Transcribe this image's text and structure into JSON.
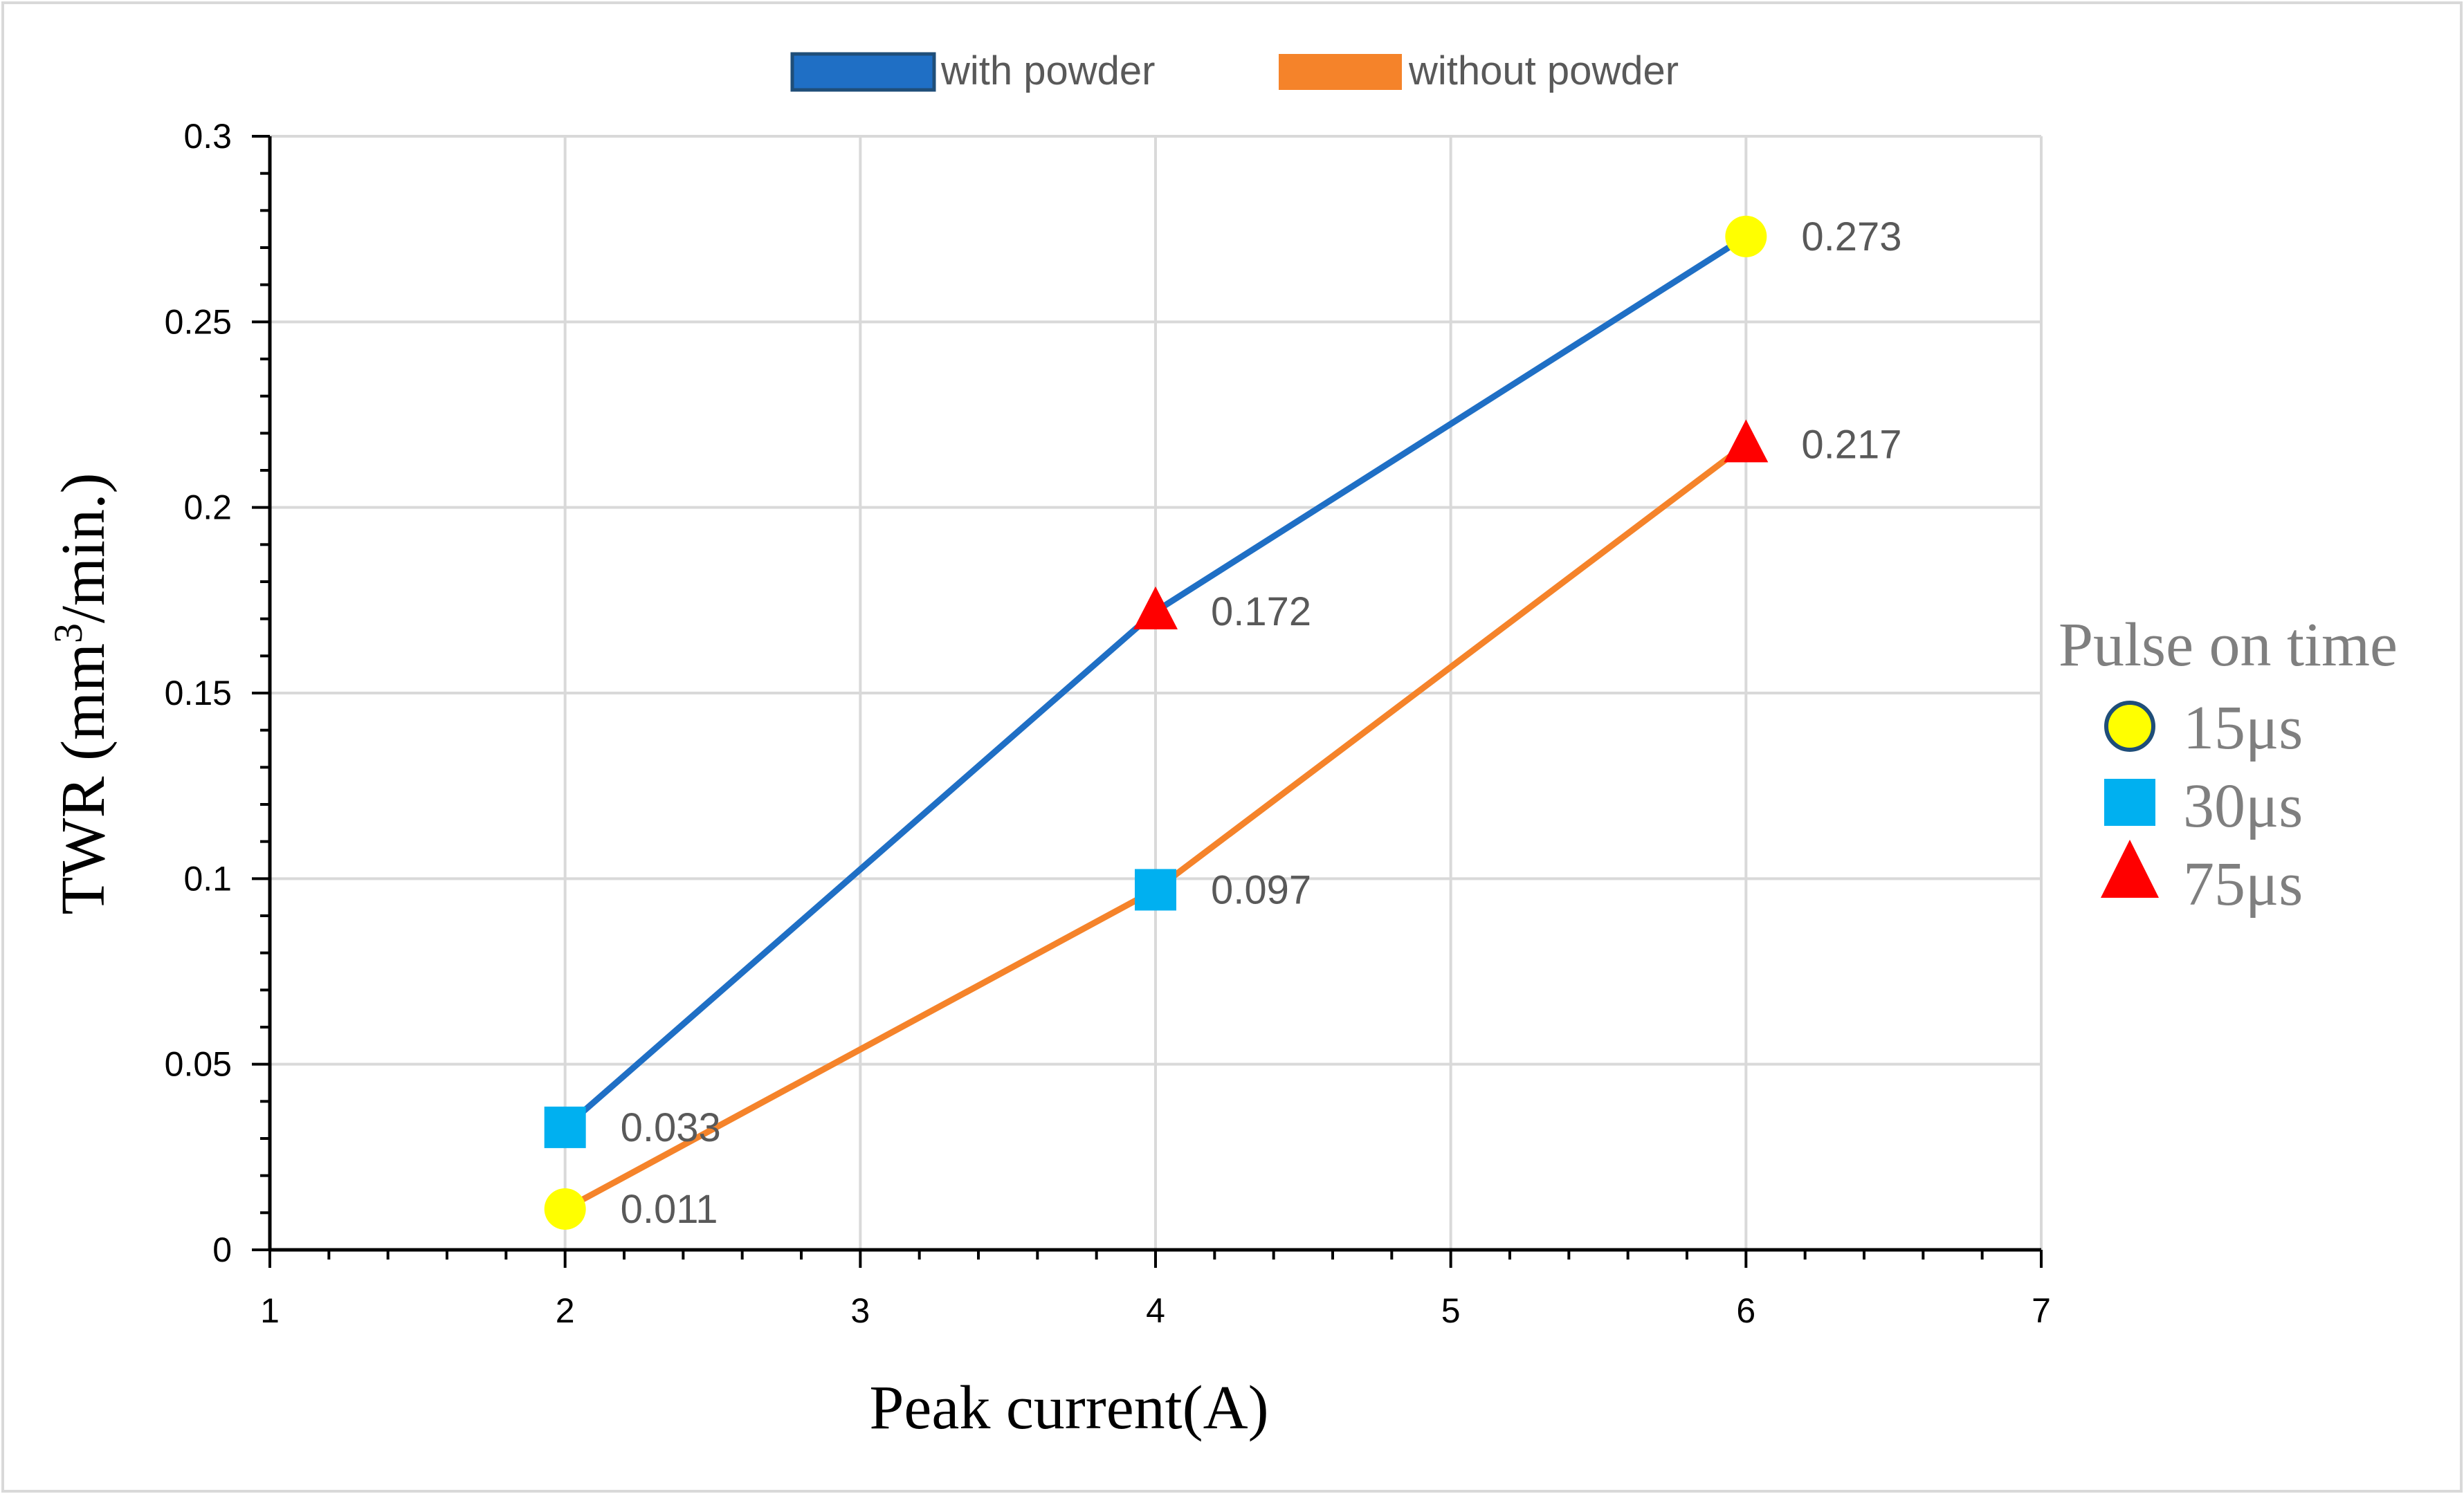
{
  "chart_data": {
    "type": "line",
    "xlabel": "Peak current(A)",
    "ylabel_main": "TWR (mm",
    "ylabel_sup": "3",
    "ylabel_tail": "/min.)",
    "xlim": [
      1,
      7
    ],
    "ylim": [
      0,
      0.3
    ],
    "x_ticks": [
      "1",
      "2",
      "3",
      "4",
      "5",
      "6",
      "7"
    ],
    "y_ticks": [
      "0",
      "0.05",
      "0.1",
      "0.15",
      "0.2",
      "0.25",
      "0.3"
    ],
    "grid": true,
    "legend_position": "top",
    "series": [
      {
        "name": "with powder",
        "color": "#1f6fc5",
        "points": [
          {
            "x": 2,
            "y": 0.033,
            "label": "0.033",
            "marker": "square"
          },
          {
            "x": 4,
            "y": 0.172,
            "label": "0.172",
            "marker": "triangle"
          },
          {
            "x": 6,
            "y": 0.273,
            "label": "0.273",
            "marker": "circle"
          }
        ]
      },
      {
        "name": "without powder",
        "color": "#f5832a",
        "points": [
          {
            "x": 2,
            "y": 0.011,
            "label": "0.011",
            "marker": "circle"
          },
          {
            "x": 4,
            "y": 0.097,
            "label": "0.097",
            "marker": "square"
          },
          {
            "x": 6,
            "y": 0.217,
            "label": "0.217",
            "marker": "triangle"
          }
        ]
      }
    ],
    "marker_legend": {
      "title": "Pulse on time",
      "items": [
        {
          "marker": "circle",
          "label": "15μs",
          "color": "#ffff00",
          "edge": "#1f4e79"
        },
        {
          "marker": "square",
          "label": "30μs",
          "color": "#00b0f0"
        },
        {
          "marker": "triangle",
          "label": "75μs",
          "color": "#ff0000"
        }
      ]
    },
    "marker_colors": {
      "circle": "#ffff00",
      "square": "#00b0f0",
      "triangle": "#ff0000"
    }
  }
}
